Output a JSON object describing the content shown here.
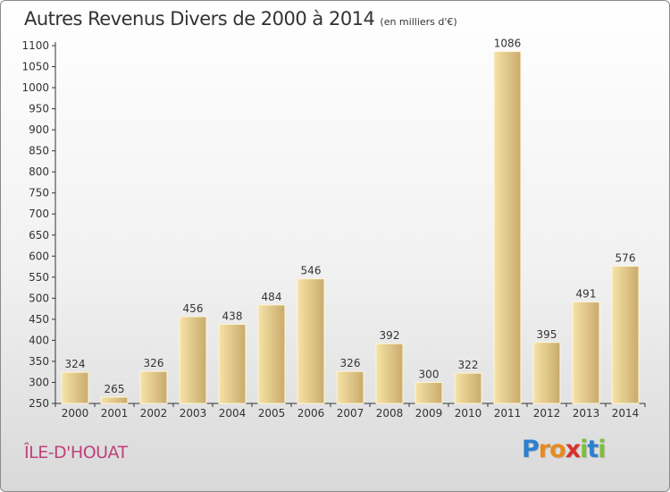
{
  "chart_data": {
    "type": "bar",
    "title": "Autres Revenus Divers de 2000 à 2014",
    "subtitle": "(en milliers d'€)",
    "categories": [
      "2000",
      "2001",
      "2002",
      "2003",
      "2004",
      "2005",
      "2006",
      "2007",
      "2008",
      "2009",
      "2010",
      "2011",
      "2012",
      "2013",
      "2014"
    ],
    "values": [
      324,
      265,
      326,
      456,
      438,
      484,
      546,
      326,
      392,
      300,
      322,
      1086,
      395,
      491,
      576
    ],
    "ylim": [
      250,
      1100
    ],
    "yticks": [
      250,
      300,
      350,
      400,
      450,
      500,
      550,
      600,
      650,
      700,
      750,
      800,
      850,
      900,
      950,
      1000,
      1050,
      1100
    ],
    "grid": false,
    "xlabel": "",
    "ylabel": ""
  },
  "location": "ÎLE-D'HOUAT",
  "brand": {
    "letters": [
      "P",
      "r",
      "o",
      "x",
      "i",
      "t",
      "i"
    ],
    "colors": [
      "#2b7fd0",
      "#e88a1e",
      "#e88a1e",
      "#d8302b",
      "#7bbf3a",
      "#2b7fd0",
      "#7bbf3a"
    ]
  },
  "colors": {
    "bar_light": "#f7e2a6",
    "bar_dark": "#c8ab6c",
    "place": "#c0407a"
  }
}
